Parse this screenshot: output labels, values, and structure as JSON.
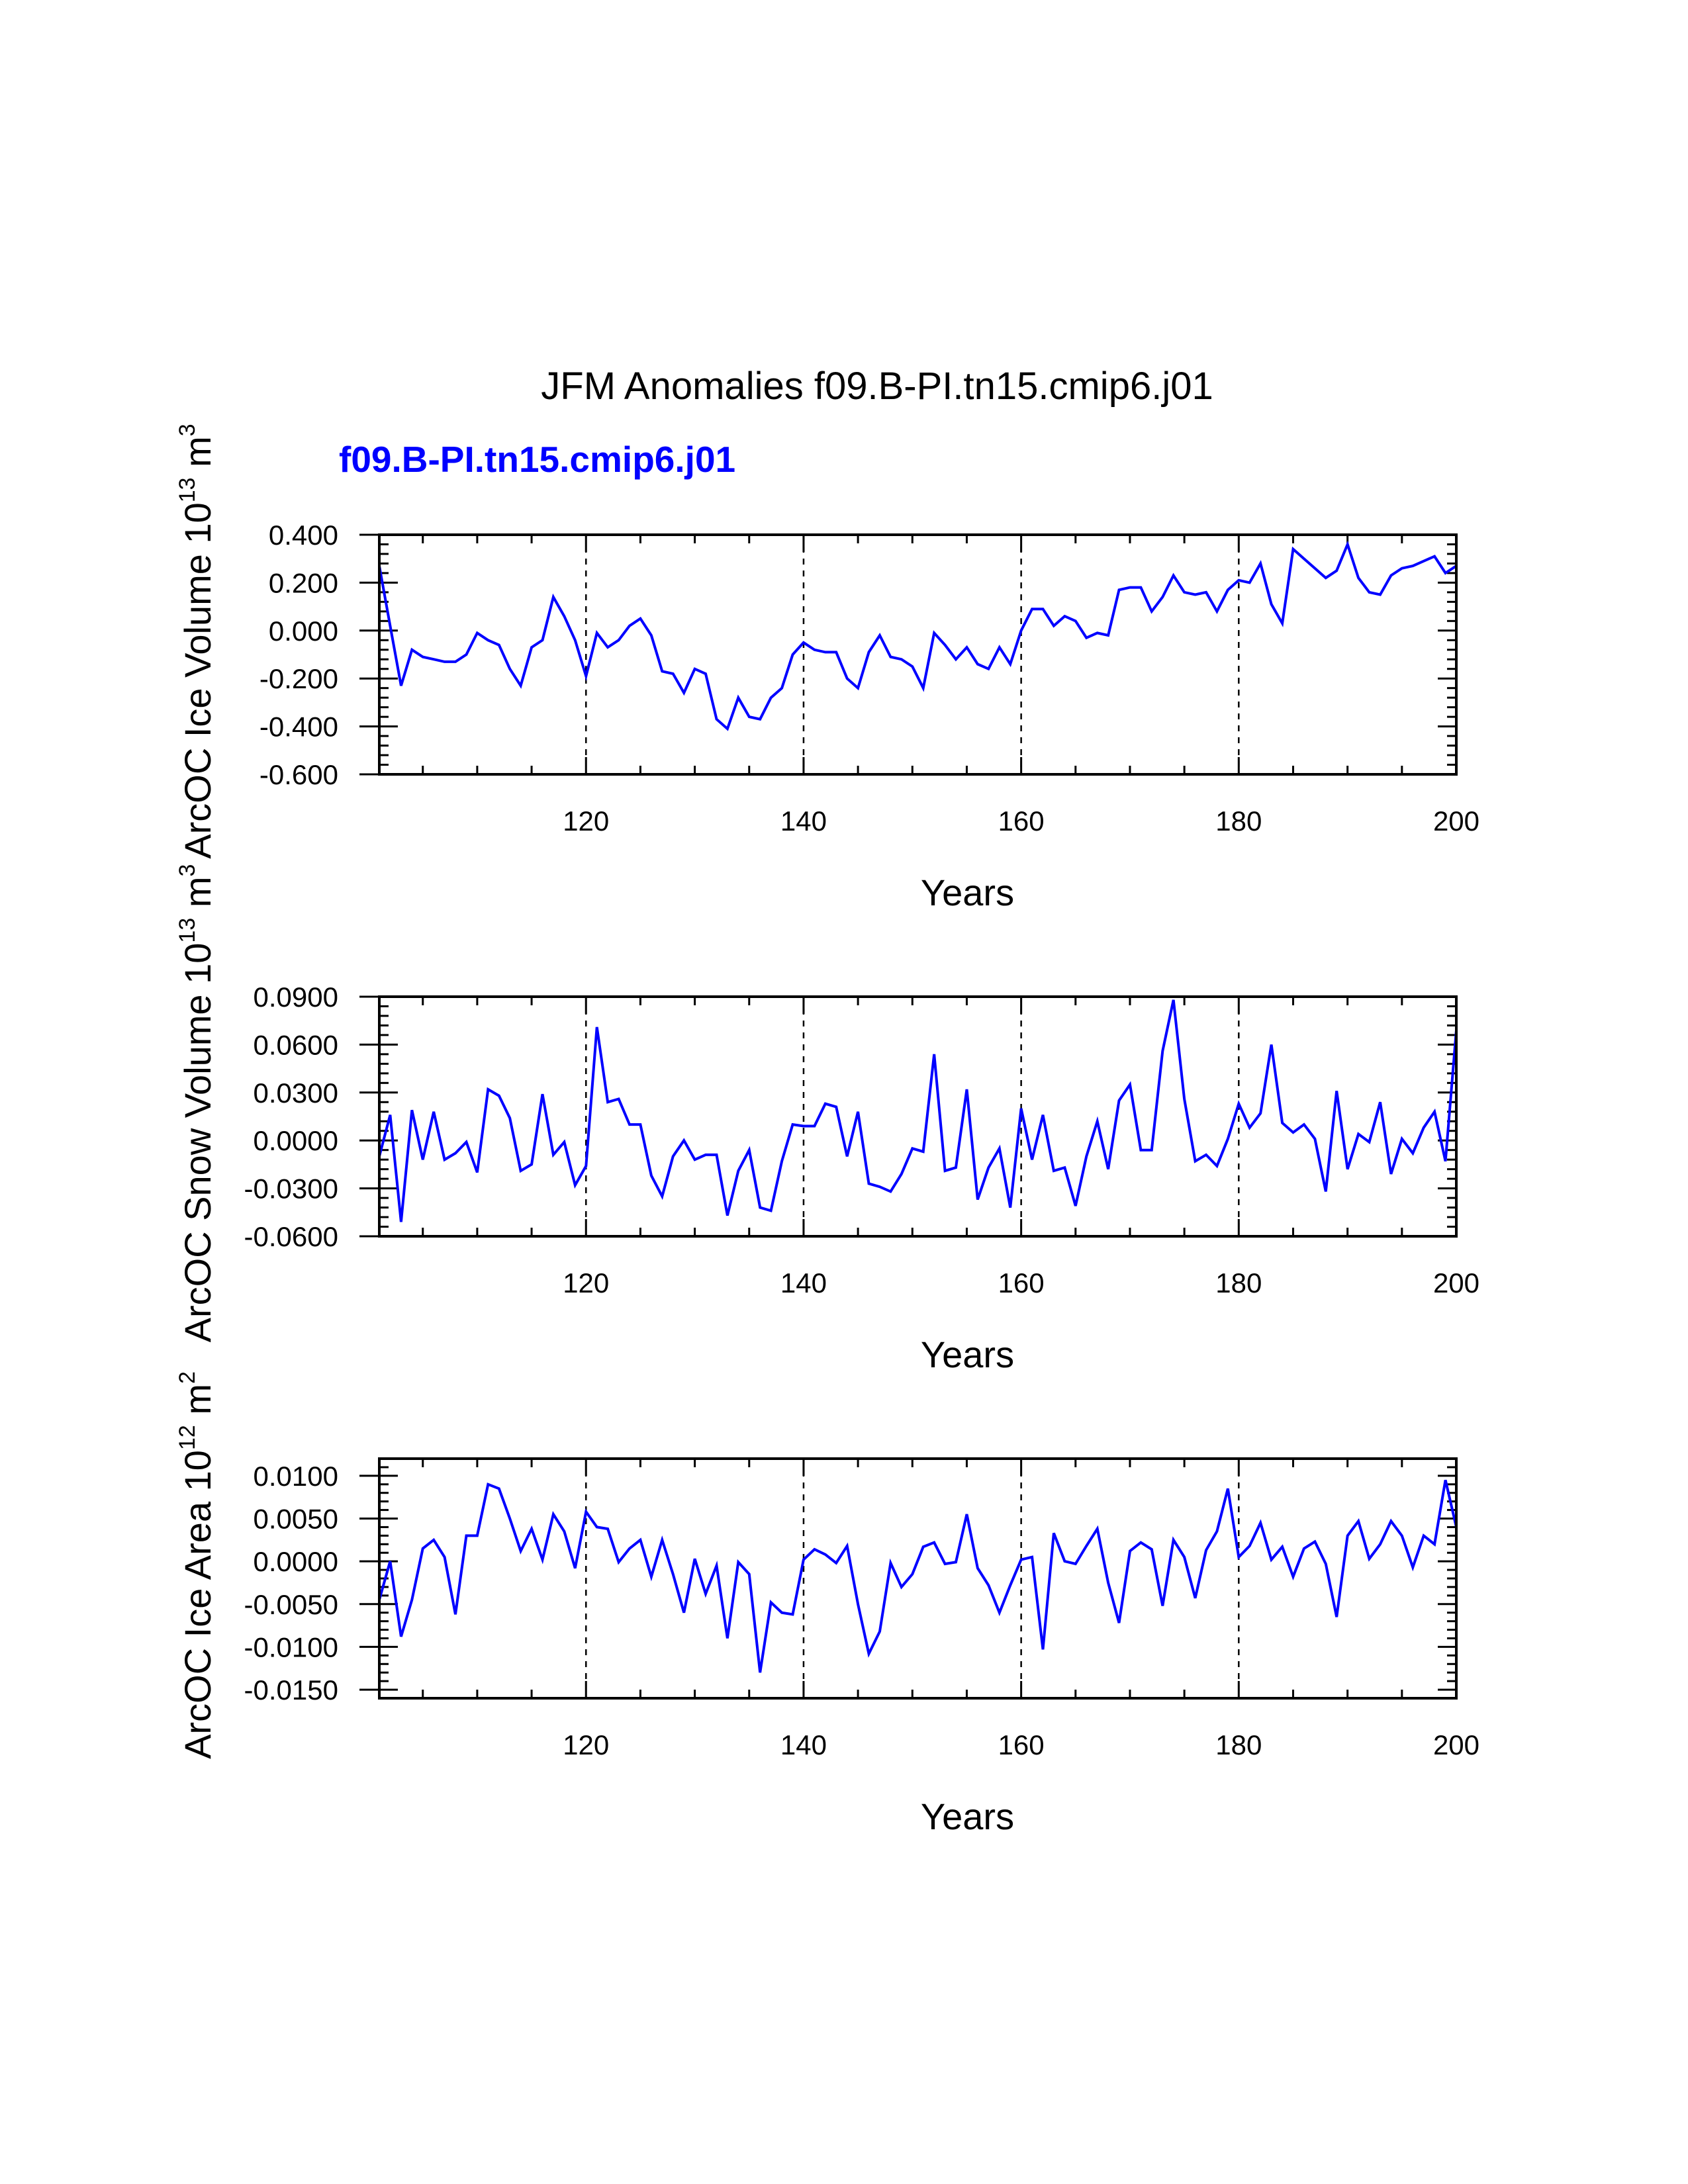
{
  "figure": {
    "title": "JFM Anomalies f09.B-PI.tn15.cmip6.j01",
    "case_label": "f09.B-PI.tn15.cmip6.j01"
  },
  "colors": {
    "series": "#0000ff",
    "case_label": "#0000ff",
    "axis": "#000000"
  },
  "chart_data": [
    {
      "type": "line",
      "panel": "ice-volume",
      "ylabel": "ArcOC Ice Volume 10",
      "ylabel_exp": "13",
      "ylabel_unit": "m",
      "ylabel_unit_exp": "3",
      "xlabel": "Years",
      "xlim": [
        101,
        200
      ],
      "ylim": [
        -0.6,
        0.4
      ],
      "xticks": [
        120,
        140,
        160,
        180,
        200
      ],
      "xtick_labels": [
        "120",
        "140",
        "160",
        "180",
        "200"
      ],
      "yticks": [
        -0.6,
        -0.4,
        -0.2,
        0.0,
        0.2,
        0.4
      ],
      "ytick_labels": [
        "-0.600",
        "-0.400",
        "-0.200",
        "0.000",
        "0.200",
        "0.400"
      ],
      "gridlines_x": [
        120,
        140,
        160,
        180
      ],
      "series": [
        {
          "name": "f09.B-PI.tn15.cmip6.j01",
          "x_start": 101,
          "values": [
            0.27,
            0.02,
            -0.23,
            -0.08,
            -0.11,
            -0.12,
            -0.13,
            -0.13,
            -0.1,
            -0.01,
            -0.04,
            -0.06,
            -0.16,
            -0.23,
            -0.07,
            -0.04,
            0.14,
            0.06,
            -0.04,
            -0.19,
            -0.01,
            -0.07,
            -0.04,
            0.02,
            0.05,
            -0.02,
            -0.17,
            -0.18,
            -0.26,
            -0.16,
            -0.18,
            -0.37,
            -0.41,
            -0.28,
            -0.36,
            -0.37,
            -0.28,
            -0.24,
            -0.1,
            -0.05,
            -0.08,
            -0.09,
            -0.09,
            -0.2,
            -0.24,
            -0.09,
            -0.02,
            -0.11,
            -0.12,
            -0.15,
            -0.24,
            -0.01,
            -0.06,
            -0.12,
            -0.07,
            -0.14,
            -0.16,
            -0.07,
            -0.14,
            0.0,
            0.09,
            0.09,
            0.02,
            0.06,
            0.04,
            -0.03,
            -0.01,
            -0.02,
            0.17,
            0.18,
            0.18,
            0.08,
            0.14,
            0.23,
            0.16,
            0.15,
            0.16,
            0.08,
            0.17,
            0.21,
            0.2,
            0.28,
            0.11,
            0.03,
            0.34,
            0.3,
            0.26,
            0.22,
            0.25,
            0.36,
            0.22,
            0.16,
            0.15,
            0.23,
            0.26,
            0.27,
            0.29,
            0.31,
            0.24,
            0.27
          ]
        }
      ]
    },
    {
      "type": "line",
      "panel": "snow-volume",
      "ylabel": "ArcOC Snow Volume 10",
      "ylabel_exp": "13",
      "ylabel_unit": "m",
      "ylabel_unit_exp": "3",
      "xlabel": "Years",
      "xlim": [
        101,
        200
      ],
      "ylim": [
        -0.06,
        0.09
      ],
      "xticks": [
        120,
        140,
        160,
        180,
        200
      ],
      "xtick_labels": [
        "120",
        "140",
        "160",
        "180",
        "200"
      ],
      "yticks": [
        -0.06,
        -0.03,
        0.0,
        0.03,
        0.06,
        0.09
      ],
      "ytick_labels": [
        "-0.0600",
        "-0.0300",
        "0.0000",
        "0.0300",
        "0.0600",
        "0.0900"
      ],
      "gridlines_x": [
        120,
        140,
        160,
        180
      ],
      "series": [
        {
          "name": "f09.B-PI.tn15.cmip6.j01",
          "x_start": 101,
          "values": [
            -0.01,
            0.016,
            -0.051,
            0.019,
            -0.012,
            0.018,
            -0.012,
            -0.008,
            -0.001,
            -0.02,
            0.032,
            0.028,
            0.014,
            -0.019,
            -0.015,
            0.029,
            -0.009,
            -0.001,
            -0.028,
            -0.016,
            0.071,
            0.024,
            0.026,
            0.01,
            0.01,
            -0.022,
            -0.035,
            -0.01,
            0.0,
            -0.012,
            -0.009,
            -0.009,
            -0.047,
            -0.019,
            -0.006,
            -0.042,
            -0.044,
            -0.013,
            0.01,
            0.009,
            0.009,
            0.023,
            0.021,
            -0.01,
            0.018,
            -0.027,
            -0.029,
            -0.032,
            -0.021,
            -0.005,
            -0.007,
            0.054,
            -0.019,
            -0.017,
            0.032,
            -0.037,
            -0.017,
            -0.005,
            -0.042,
            0.02,
            -0.012,
            0.016,
            -0.019,
            -0.017,
            -0.041,
            -0.01,
            0.012,
            -0.018,
            0.025,
            0.035,
            -0.006,
            -0.006,
            0.056,
            0.088,
            0.026,
            -0.013,
            -0.009,
            -0.016,
            0.001,
            0.023,
            0.008,
            0.017,
            0.06,
            0.011,
            0.005,
            0.01,
            0.001,
            -0.032,
            0.031,
            -0.018,
            0.004,
            -0.001,
            0.024,
            -0.021,
            0.001,
            -0.008,
            0.008,
            0.018,
            -0.013,
            0.069
          ]
        }
      ]
    },
    {
      "type": "line",
      "panel": "ice-area",
      "ylabel": "ArcOC Ice Area 10",
      "ylabel_exp": "12",
      "ylabel_unit": "m",
      "ylabel_unit_exp": "2",
      "xlabel": "Years",
      "xlim": [
        101,
        200
      ],
      "ylim": [
        -0.016,
        0.012
      ],
      "xticks": [
        120,
        140,
        160,
        180,
        200
      ],
      "xtick_labels": [
        "120",
        "140",
        "160",
        "180",
        "200"
      ],
      "yticks": [
        -0.015,
        -0.01,
        -0.005,
        0.0,
        0.005,
        0.01
      ],
      "ytick_labels": [
        "-0.0150",
        "-0.0100",
        "-0.0050",
        "0.0000",
        "0.0050",
        "0.0100"
      ],
      "gridlines_x": [
        120,
        140,
        160,
        180
      ],
      "series": [
        {
          "name": "f09.B-PI.tn15.cmip6.j01",
          "x_start": 101,
          "values": [
            -0.0045,
            0.0,
            -0.0088,
            -0.0045,
            0.0015,
            0.0025,
            0.0005,
            -0.0062,
            0.003,
            0.003,
            0.009,
            0.0085,
            0.005,
            0.0012,
            0.0038,
            0.0002,
            0.0055,
            0.0035,
            -0.0008,
            0.0058,
            0.004,
            0.0038,
            -0.0001,
            0.0015,
            0.0025,
            -0.0018,
            0.0025,
            -0.0015,
            -0.006,
            0.0003,
            -0.0038,
            -0.0005,
            -0.009,
            -0.0001,
            -0.0015,
            -0.013,
            -0.0048,
            -0.006,
            -0.0062,
            0.0002,
            0.0014,
            0.0008,
            -0.0002,
            0.0018,
            -0.005,
            -0.0108,
            -0.0082,
            -0.0002,
            -0.003,
            -0.0015,
            0.0017,
            0.0022,
            -0.0003,
            -0.0001,
            0.0055,
            -0.0008,
            -0.0028,
            -0.006,
            -0.0028,
            0.0002,
            0.0005,
            -0.0103,
            0.0033,
            0.0,
            -0.0003,
            0.0018,
            0.0038,
            -0.0025,
            -0.0072,
            0.0012,
            0.0022,
            0.0014,
            -0.0052,
            0.0025,
            0.0005,
            -0.0043,
            0.0013,
            0.0035,
            0.0085,
            0.0005,
            0.0018,
            0.0045,
            0.0002,
            0.0017,
            -0.0018,
            0.0015,
            0.0023,
            -0.0003,
            -0.0065,
            0.003,
            0.0047,
            0.0003,
            0.002,
            0.0047,
            0.003,
            -0.0007,
            0.003,
            0.002,
            0.0095,
            0.004
          ]
        }
      ]
    }
  ]
}
